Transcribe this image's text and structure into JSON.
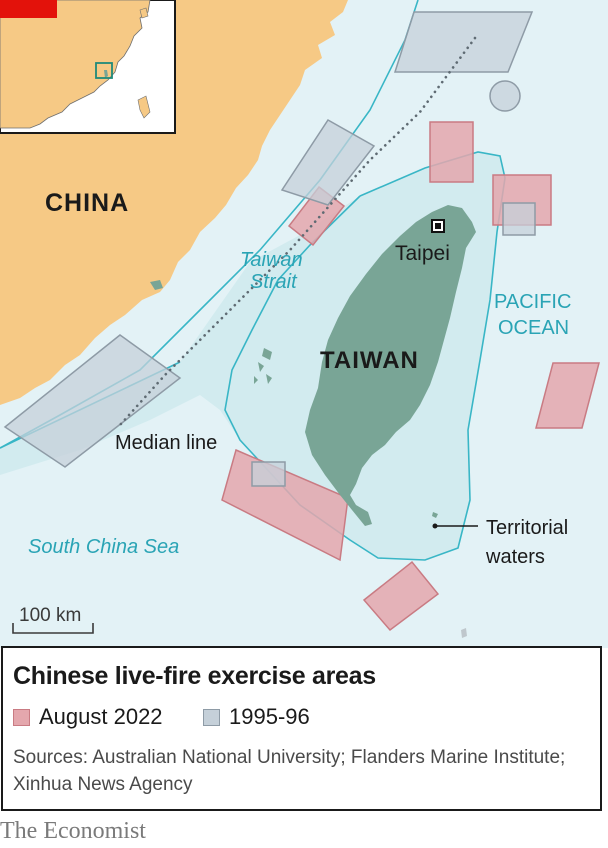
{
  "map": {
    "labels": {
      "china": "CHINA",
      "taiwan": "TAIWAN",
      "taipei": "Taipei",
      "strait_line1": "Taiwan",
      "strait_line2": "Strait",
      "pacific_line1": "PACIFIC",
      "pacific_line2": "OCEAN",
      "median_line": "Median line",
      "south_china_sea": "South China Sea",
      "territorial_line1": "Territorial",
      "territorial_line2": "waters",
      "scale": "100 km"
    },
    "colors": {
      "land": "#f6c985",
      "sea": "#e3f2f6",
      "territorial_fill": "#d2ebef",
      "teal_line": "#39b6c6",
      "taiwan": "#79a596",
      "exercise_2022_fill": "#e4a7ad",
      "exercise_2022_stroke": "#c97b83",
      "exercise_1995_fill": "#c5d0d9",
      "exercise_1995_stroke": "#8e9ba6",
      "inset_marker": "#e3120b"
    },
    "icons": [
      "capital-marker-icon",
      "locator-inset-map"
    ]
  },
  "legend": {
    "title": "Chinese live-fire exercise areas",
    "items": [
      {
        "label": "August 2022",
        "color": "#e4a7ad",
        "border": "#c97b83"
      },
      {
        "label": "1995-96",
        "color": "#c5d0d9",
        "border": "#8e9ba6"
      }
    ],
    "sources": "Sources: Australian National University; Flanders Marine Institute; Xinhua News Agency"
  },
  "brand": "The Economist"
}
